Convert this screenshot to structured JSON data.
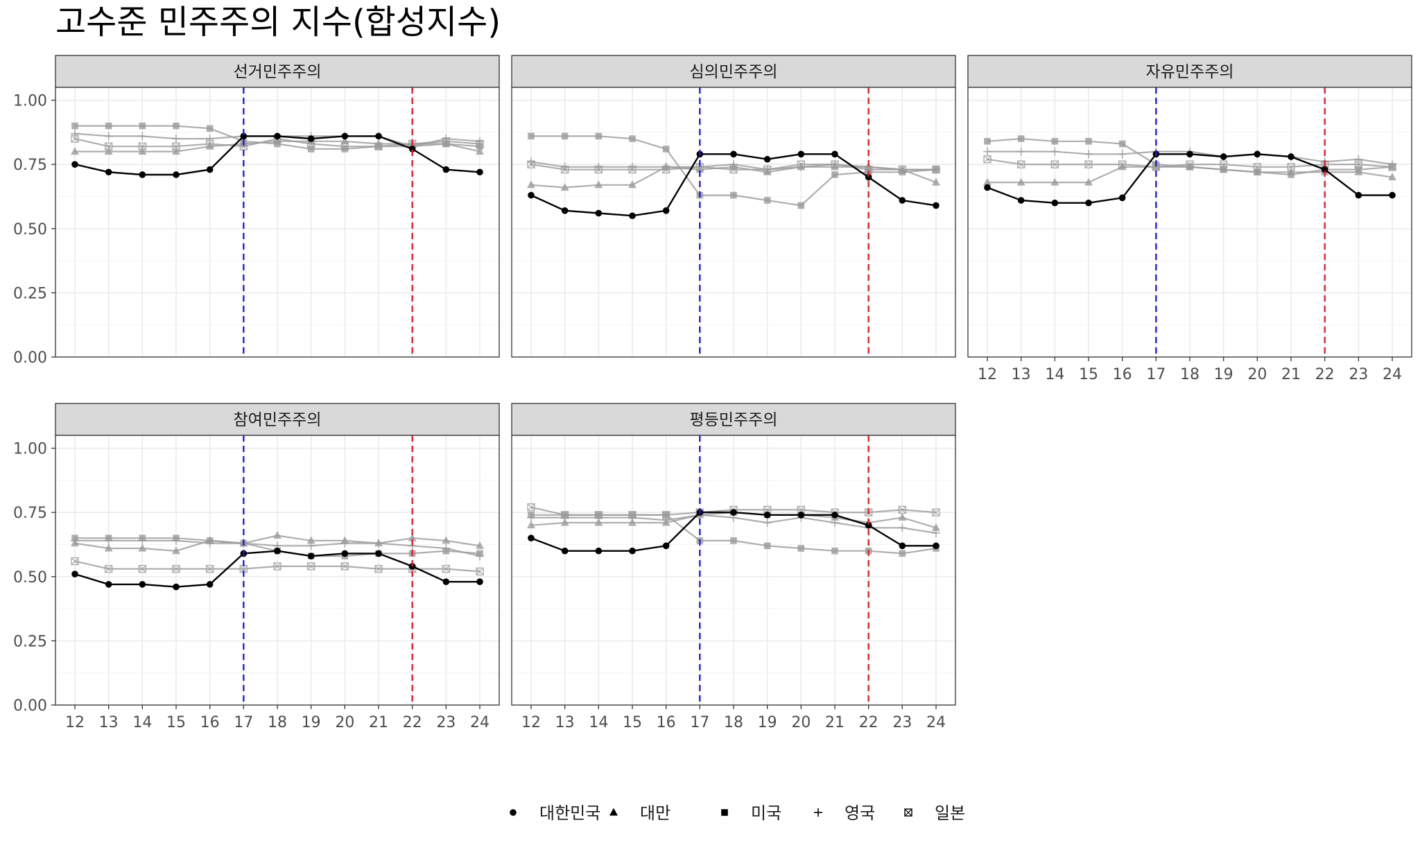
{
  "title": "고수준 민주주의 지수(합성지수)",
  "legend": {
    "placement": "bottom",
    "items": [
      {
        "name": "대한민국",
        "shape": "circle"
      },
      {
        "name": "대만",
        "shape": "triangle"
      },
      {
        "name": "미국",
        "shape": "square"
      },
      {
        "name": "영국",
        "shape": "plus"
      },
      {
        "name": "일본",
        "shape": "square-cross"
      }
    ]
  },
  "colors": {
    "korea": "#000000",
    "other": "#9a9a9a",
    "vline_blue": "#1f1fd6",
    "vline_red": "#e0202a",
    "strip_bg": "#d9d9d9",
    "grid": "#ebebeb"
  },
  "chart_data": {
    "type": "line",
    "facets": [
      "선거민주주의",
      "심의민주주의",
      "자유민주주의",
      "참여민주주의",
      "평등민주주의"
    ],
    "x": [
      12,
      13,
      14,
      15,
      16,
      17,
      18,
      19,
      20,
      21,
      22,
      23,
      24
    ],
    "x_ticks": [
      "12",
      "13",
      "14",
      "15",
      "16",
      "17",
      "18",
      "19",
      "20",
      "21",
      "22",
      "23",
      "24"
    ],
    "y_ticks": [
      "0.00",
      "0.25",
      "0.50",
      "0.75",
      "1.00"
    ],
    "ylim": [
      0,
      1.05
    ],
    "vlines": [
      17,
      22
    ],
    "grid": true,
    "panels": [
      {
        "facet": "선거민주주의",
        "series": [
          {
            "name": "대만",
            "values": [
              0.8,
              0.8,
              0.8,
              0.8,
              0.82,
              0.83,
              0.84,
              0.84,
              0.84,
              0.83,
              0.83,
              0.83,
              0.8
            ]
          },
          {
            "name": "미국",
            "values": [
              0.9,
              0.9,
              0.9,
              0.9,
              0.89,
              0.84,
              0.83,
              0.81,
              0.81,
              0.82,
              0.82,
              0.83,
              0.82
            ]
          },
          {
            "name": "영국",
            "values": [
              0.87,
              0.86,
              0.86,
              0.85,
              0.85,
              0.86,
              0.86,
              0.86,
              0.86,
              0.86,
              0.82,
              0.85,
              0.84
            ]
          },
          {
            "name": "일본",
            "values": [
              0.85,
              0.82,
              0.82,
              0.82,
              0.83,
              0.82,
              0.85,
              0.83,
              0.82,
              0.82,
              0.83,
              0.84,
              0.83
            ]
          },
          {
            "name": "대한민국",
            "values": [
              0.75,
              0.72,
              0.71,
              0.71,
              0.73,
              0.86,
              0.86,
              0.85,
              0.86,
              0.86,
              0.81,
              0.73,
              0.72
            ]
          }
        ]
      },
      {
        "facet": "심의민주주의",
        "series": [
          {
            "name": "대만",
            "values": [
              0.67,
              0.66,
              0.67,
              0.67,
              0.74,
              0.73,
              0.74,
              0.72,
              0.74,
              0.74,
              0.74,
              0.73,
              0.68
            ]
          },
          {
            "name": "미국",
            "values": [
              0.86,
              0.86,
              0.86,
              0.85,
              0.81,
              0.63,
              0.63,
              0.61,
              0.59,
              0.71,
              0.72,
              0.72,
              0.73
            ]
          },
          {
            "name": "영국",
            "values": [
              0.76,
              0.74,
              0.74,
              0.74,
              0.74,
              0.74,
              0.75,
              0.73,
              0.74,
              0.75,
              0.74,
              0.73,
              0.73
            ]
          },
          {
            "name": "일본",
            "values": [
              0.75,
              0.73,
              0.73,
              0.73,
              0.73,
              0.74,
              0.73,
              0.73,
              0.75,
              0.75,
              0.73,
              0.73,
              0.73
            ]
          },
          {
            "name": "대한민국",
            "values": [
              0.63,
              0.57,
              0.56,
              0.55,
              0.57,
              0.79,
              0.79,
              0.77,
              0.79,
              0.79,
              0.7,
              0.61,
              0.59
            ]
          }
        ]
      },
      {
        "facet": "자유민주주의",
        "series": [
          {
            "name": "대만",
            "values": [
              0.68,
              0.68,
              0.68,
              0.68,
              0.74,
              0.74,
              0.74,
              0.73,
              0.72,
              0.72,
              0.72,
              0.72,
              0.7
            ]
          },
          {
            "name": "미국",
            "values": [
              0.84,
              0.85,
              0.84,
              0.84,
              0.83,
              0.75,
              0.74,
              0.73,
              0.72,
              0.71,
              0.73,
              0.73,
              0.74
            ]
          },
          {
            "name": "영국",
            "values": [
              0.8,
              0.8,
              0.8,
              0.79,
              0.79,
              0.8,
              0.8,
              0.78,
              0.79,
              0.78,
              0.76,
              0.77,
              0.75
            ]
          },
          {
            "name": "일본",
            "values": [
              0.77,
              0.75,
              0.75,
              0.75,
              0.75,
              0.74,
              0.75,
              0.75,
              0.74,
              0.74,
              0.75,
              0.75,
              0.74
            ]
          },
          {
            "name": "대한민국",
            "values": [
              0.66,
              0.61,
              0.6,
              0.6,
              0.62,
              0.79,
              0.79,
              0.78,
              0.79,
              0.78,
              0.73,
              0.63,
              0.63
            ]
          }
        ]
      },
      {
        "facet": "참여민주주의",
        "series": [
          {
            "name": "대만",
            "values": [
              0.63,
              0.61,
              0.61,
              0.6,
              0.64,
              0.63,
              0.66,
              0.64,
              0.64,
              0.63,
              0.65,
              0.64,
              0.62
            ]
          },
          {
            "name": "미국",
            "values": [
              0.65,
              0.65,
              0.65,
              0.65,
              0.64,
              0.63,
              0.6,
              0.58,
              0.58,
              0.59,
              0.59,
              0.6,
              0.59
            ]
          },
          {
            "name": "영국",
            "values": [
              0.64,
              0.64,
              0.64,
              0.64,
              0.63,
              0.63,
              0.62,
              0.62,
              0.63,
              0.63,
              0.62,
              0.61,
              0.58
            ]
          },
          {
            "name": "일본",
            "values": [
              0.56,
              0.53,
              0.53,
              0.53,
              0.53,
              0.53,
              0.54,
              0.54,
              0.54,
              0.53,
              0.53,
              0.53,
              0.52
            ]
          },
          {
            "name": "대한민국",
            "values": [
              0.51,
              0.47,
              0.47,
              0.46,
              0.47,
              0.59,
              0.6,
              0.58,
              0.59,
              0.59,
              0.54,
              0.48,
              0.48
            ]
          }
        ]
      },
      {
        "facet": "평등민주주의",
        "series": [
          {
            "name": "대만",
            "values": [
              0.7,
              0.71,
              0.71,
              0.71,
              0.71,
              0.74,
              0.75,
              0.74,
              0.74,
              0.73,
              0.71,
              0.73,
              0.69
            ]
          },
          {
            "name": "미국",
            "values": [
              0.74,
              0.74,
              0.74,
              0.74,
              0.74,
              0.64,
              0.64,
              0.62,
              0.61,
              0.6,
              0.6,
              0.59,
              0.61
            ]
          },
          {
            "name": "영국",
            "values": [
              0.73,
              0.73,
              0.73,
              0.73,
              0.72,
              0.74,
              0.73,
              0.71,
              0.73,
              0.71,
              0.69,
              0.69,
              0.67
            ]
          },
          {
            "name": "일본",
            "values": [
              0.77,
              0.74,
              0.74,
              0.74,
              0.74,
              0.75,
              0.76,
              0.76,
              0.76,
              0.75,
              0.75,
              0.76,
              0.75
            ]
          },
          {
            "name": "대한민국",
            "values": [
              0.65,
              0.6,
              0.6,
              0.6,
              0.62,
              0.75,
              0.75,
              0.74,
              0.74,
              0.74,
              0.7,
              0.62,
              0.62
            ]
          }
        ]
      }
    ]
  }
}
